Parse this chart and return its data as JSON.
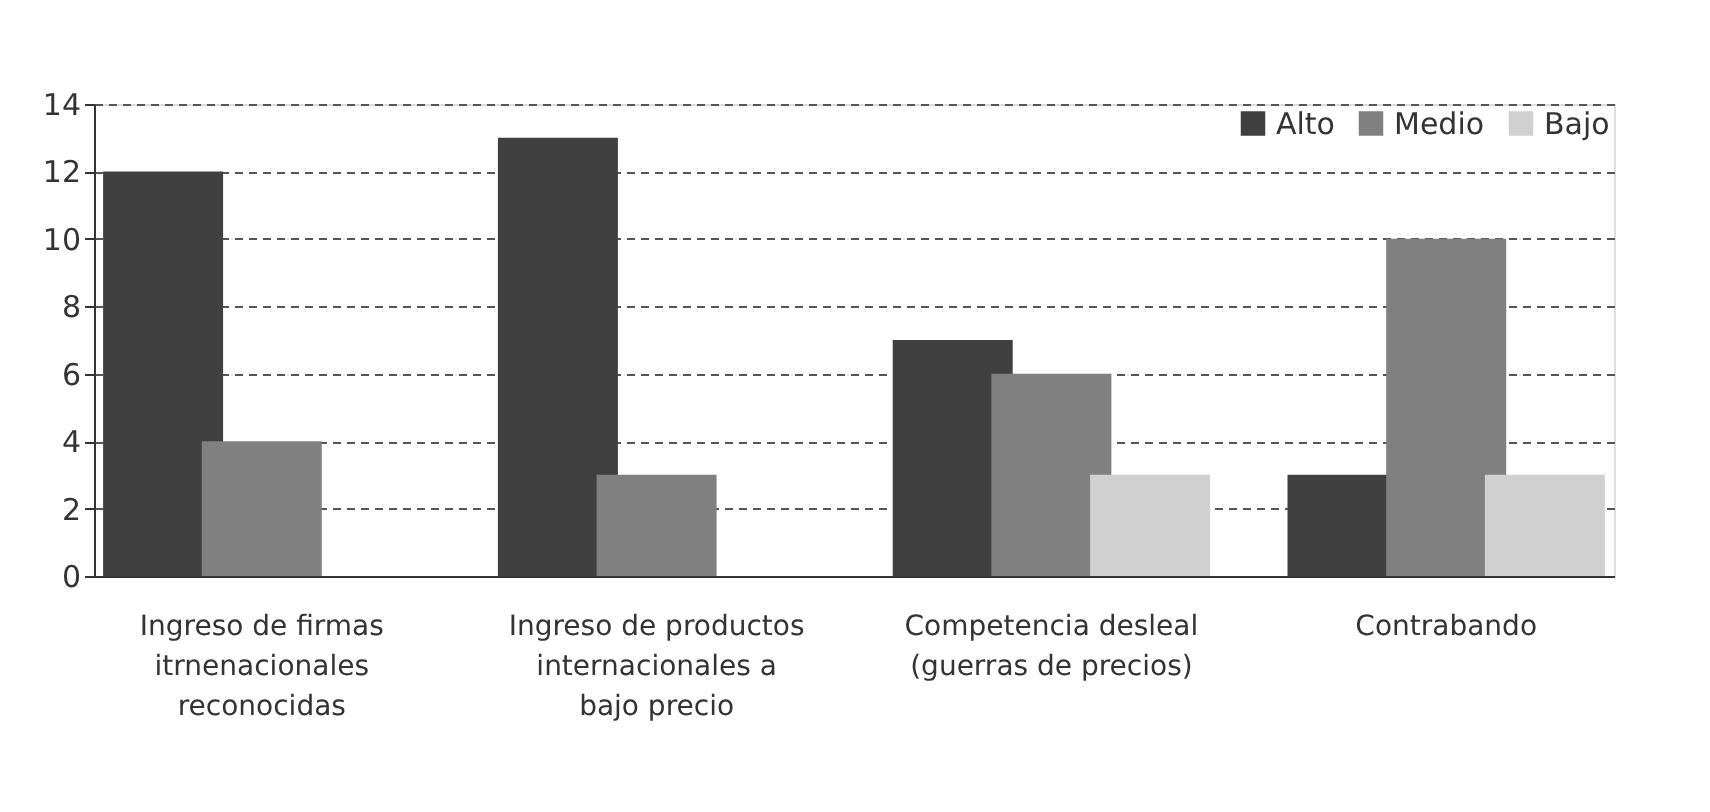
{
  "chart_data": {
    "type": "bar",
    "categories": [
      "Ingreso de firmas itrnenacionales reconocidas",
      "Ingreso de productos internacionales a bajo precio",
      "Competencia desleal (guerras de precios)",
      "Contrabando"
    ],
    "series": [
      {
        "name": "Alto",
        "color": "#404040",
        "values": [
          12,
          13,
          7,
          3
        ]
      },
      {
        "name": "Medio",
        "color": "#808080",
        "values": [
          4,
          3,
          6,
          10
        ]
      },
      {
        "name": "Bajo",
        "color": "#d0d0d0",
        "values": [
          0,
          0,
          3,
          3
        ]
      }
    ],
    "ylim": [
      0,
      14
    ],
    "yticks": [
      0,
      2,
      4,
      6,
      8,
      10,
      12,
      14
    ],
    "grid": "y",
    "legend": "top right"
  }
}
